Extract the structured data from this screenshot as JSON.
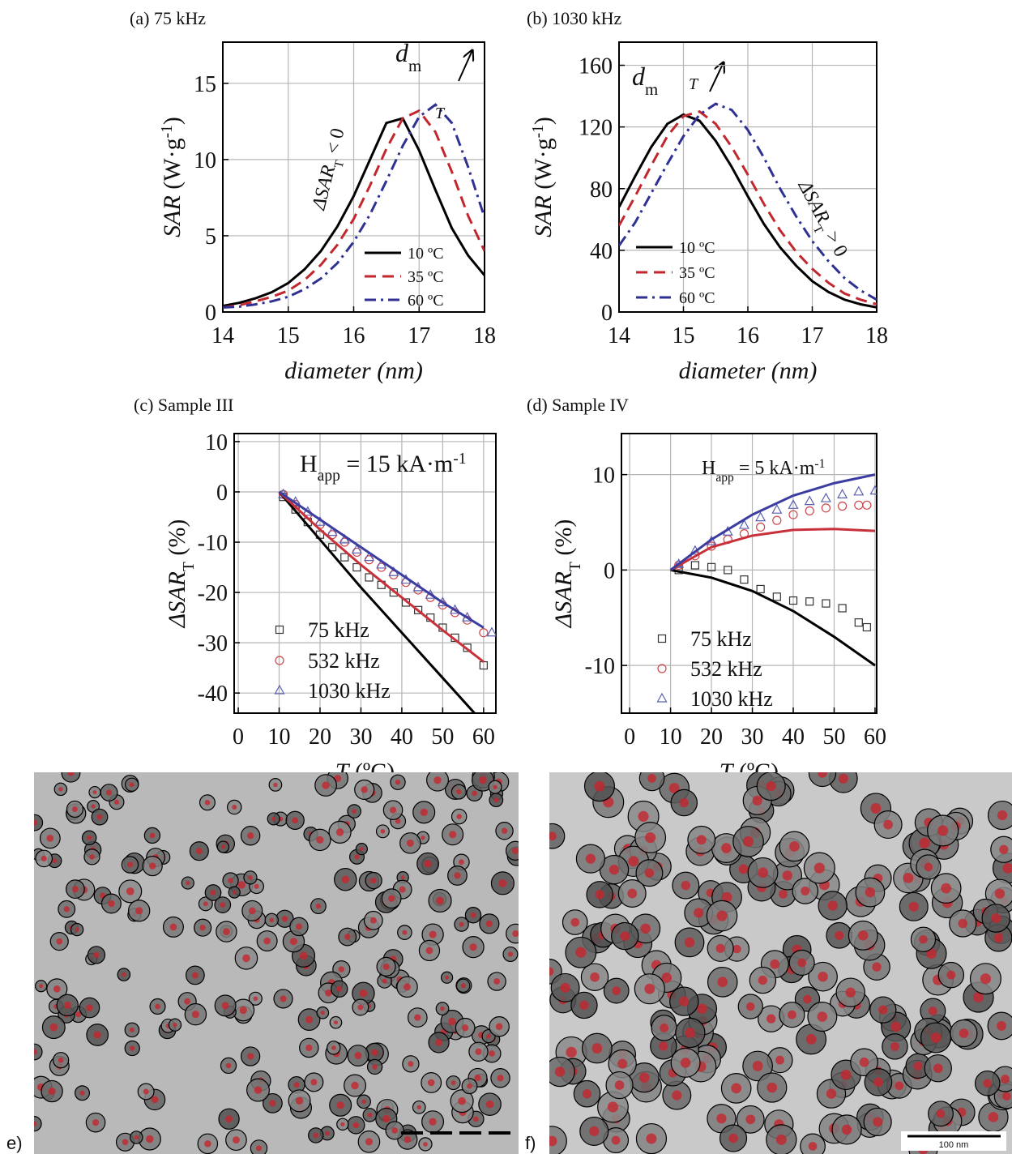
{
  "chart_data": [
    {
      "type": "line",
      "title": "(a) 75 kHz",
      "xlabel": [
        "diameter (nm)"
      ],
      "ylabel": [
        "SAR",
        " (W·g",
        "-1",
        ")"
      ],
      "x": [
        14,
        14.25,
        14.5,
        14.75,
        15,
        15.25,
        15.5,
        15.75,
        16,
        16.25,
        16.5,
        16.75,
        17,
        17.25,
        17.5,
        17.75,
        18
      ],
      "xlim": [
        14,
        18
      ],
      "xticks": [
        14,
        15,
        16,
        17,
        18
      ],
      "ylim": [
        0,
        17.7
      ],
      "yticks": [
        0,
        5,
        10,
        15
      ],
      "grid": true,
      "legend": "lower right",
      "series": [
        {
          "name": "10 ºC",
          "color": "#000000",
          "style": "solid",
          "values": [
            0.4,
            0.6,
            0.9,
            1.3,
            1.9,
            2.8,
            4.0,
            5.6,
            7.6,
            10.0,
            12.4,
            12.7,
            10.6,
            8.0,
            5.5,
            3.7,
            2.4
          ]
        },
        {
          "name": "35 ºC",
          "color": "#c1272d",
          "style": "dash",
          "values": [
            0.3,
            0.45,
            0.7,
            1.0,
            1.4,
            2.1,
            3.1,
            4.4,
            6.1,
            8.3,
            10.7,
            12.7,
            13.2,
            11.8,
            9.2,
            6.3,
            4.0
          ]
        },
        {
          "name": "60 ºC",
          "color": "#2e3192",
          "style": "dashdot",
          "values": [
            0.3,
            0.35,
            0.5,
            0.7,
            1.0,
            1.5,
            2.2,
            3.2,
            4.6,
            6.4,
            8.6,
            10.9,
            12.8,
            13.6,
            12.4,
            9.5,
            6.2
          ]
        }
      ],
      "annotations": [
        [
          "d",
          "m"
        ],
        [
          "T"
        ],
        [
          "ΔSAR",
          "T",
          " < 0"
        ]
      ]
    },
    {
      "type": "line",
      "title": "(b) 1030 kHz",
      "xlabel": [
        "diameter (nm)"
      ],
      "ylabel": [
        "SAR",
        " (W·g",
        "-1",
        ")"
      ],
      "x": [
        14,
        14.25,
        14.5,
        14.75,
        15,
        15.25,
        15.5,
        15.75,
        16,
        16.25,
        16.5,
        16.75,
        17,
        17.25,
        17.5,
        17.75,
        18
      ],
      "xlim": [
        14,
        18
      ],
      "xticks": [
        14,
        15,
        16,
        17,
        18
      ],
      "ylim": [
        0,
        175
      ],
      "yticks": [
        0,
        40,
        80,
        120,
        160
      ],
      "grid": true,
      "legend": "lower left",
      "series": [
        {
          "name": "10 ºC",
          "color": "#000000",
          "style": "solid",
          "values": [
            68,
            88,
            107,
            122,
            128,
            124,
            111,
            94,
            75,
            57,
            42,
            30,
            20,
            13,
            8,
            5,
            3
          ]
        },
        {
          "name": "35 ºC",
          "color": "#c1272d",
          "style": "dash",
          "values": [
            56,
            75,
            95,
            114,
            127,
            130,
            122,
            107,
            89,
            70,
            53,
            39,
            28,
            19,
            12,
            8,
            5
          ]
        },
        {
          "name": "60 ºC",
          "color": "#2e3192",
          "style": "dashdot",
          "values": [
            43,
            58,
            77,
            96,
            114,
            128,
            135,
            131,
            118,
            100,
            80,
            62,
            46,
            33,
            22,
            14,
            8
          ]
        }
      ],
      "annotations": [
        [
          "d",
          "m"
        ],
        [
          "T"
        ],
        [
          "ΔSAR",
          "T",
          " > 0"
        ]
      ]
    },
    {
      "type": "line",
      "title": "(c) Sample III",
      "xlabel": [
        "T",
        " (ºC)"
      ],
      "ylabel": [
        "ΔSAR",
        "T",
        " (%)"
      ],
      "xlim": [
        -1,
        63
      ],
      "xticks": [
        0,
        10,
        20,
        30,
        40,
        50,
        60
      ],
      "ylim": [
        -44,
        11.6
      ],
      "yticks": [
        -40,
        -30,
        -20,
        -10,
        0,
        10
      ],
      "grid": true,
      "legend": "lower left",
      "series": [
        {
          "name": "75 kHz",
          "color": "#333333",
          "marker": "square",
          "x": [
            11,
            14,
            17,
            20,
            23,
            26,
            29,
            32,
            35,
            38,
            41,
            44,
            47,
            50,
            53,
            56,
            60
          ],
          "values": [
            -1,
            -3.5,
            -6,
            -8.5,
            -11,
            -13,
            -15,
            -17,
            -18.5,
            -20,
            -22,
            -23.5,
            -25,
            -27,
            -29,
            -31,
            -34.5
          ]
        },
        {
          "name": "532 kHz",
          "color": "#d0454b",
          "marker": "circle",
          "x": [
            11,
            14,
            17,
            20,
            23,
            26,
            29,
            32,
            35,
            38,
            41,
            44,
            47,
            50,
            53,
            56,
            60
          ],
          "values": [
            -0.5,
            -2.5,
            -4.5,
            -6.5,
            -8.5,
            -10,
            -12,
            -13.5,
            -15,
            -16.5,
            -18,
            -19.5,
            -21,
            -22.5,
            -24,
            -25.5,
            -28
          ]
        },
        {
          "name": "1030 kHz",
          "color": "#5a5fb0",
          "marker": "triangle",
          "x": [
            11,
            14,
            17,
            20,
            23,
            26,
            29,
            32,
            35,
            38,
            41,
            44,
            47,
            50,
            53,
            56,
            62
          ],
          "values": [
            -0.5,
            -2,
            -4,
            -6,
            -8,
            -9.5,
            -11.5,
            -13,
            -14.5,
            -16,
            -17.5,
            -19,
            -20.5,
            -22,
            -23.5,
            -25,
            -28
          ]
        },
        {
          "color": "#000000",
          "style": "solid",
          "x": [
            10,
            20,
            30,
            40,
            50,
            60
          ],
          "values": [
            0,
            -9.5,
            -19,
            -28,
            -37,
            -46
          ]
        },
        {
          "color": "#c8313a",
          "style": "solid",
          "x": [
            10,
            20,
            30,
            40,
            50,
            60
          ],
          "values": [
            0,
            -7.5,
            -14.5,
            -21,
            -27.5,
            -33.8
          ]
        },
        {
          "color": "#3b3ea0",
          "style": "solid",
          "x": [
            10,
            20,
            30,
            40,
            50,
            60
          ],
          "values": [
            0,
            -5.5,
            -11,
            -16.5,
            -22,
            -27
          ]
        }
      ],
      "annotations": [
        [
          "H",
          "app",
          " = 15 kA·m",
          "-1"
        ]
      ]
    },
    {
      "type": "line",
      "title": "(d) Sample IV",
      "xlabel": [
        "T",
        " (ºC)"
      ],
      "ylabel": [
        "ΔSAR",
        "T",
        " (%)"
      ],
      "xlim": [
        -2,
        60.4
      ],
      "xticks": [
        0,
        10,
        20,
        30,
        40,
        50,
        60
      ],
      "ylim": [
        -15,
        14.3
      ],
      "yticks": [
        -10,
        0,
        10
      ],
      "grid": true,
      "legend": "lower left",
      "series": [
        {
          "name": "75 kHz",
          "color": "#333333",
          "marker": "square",
          "x": [
            12,
            16,
            20,
            24,
            28,
            32,
            36,
            40,
            44,
            48,
            52,
            56,
            58
          ],
          "values": [
            0,
            0.5,
            0.3,
            0,
            -1,
            -2,
            -2.8,
            -3.2,
            -3.3,
            -3.5,
            -4,
            -5.5,
            -6
          ]
        },
        {
          "name": "532 kHz",
          "color": "#d0454b",
          "marker": "circle",
          "x": [
            12,
            16,
            20,
            24,
            28,
            32,
            36,
            40,
            44,
            48,
            52,
            56,
            58
          ],
          "values": [
            0.5,
            1.5,
            2.5,
            3.2,
            3.8,
            4.5,
            5.2,
            5.8,
            6.2,
            6.5,
            6.7,
            6.8,
            6.8
          ]
        },
        {
          "name": "1030 kHz",
          "color": "#5a5fb0",
          "marker": "triangle",
          "x": [
            12,
            16,
            20,
            24,
            28,
            32,
            36,
            40,
            44,
            48,
            52,
            56,
            60
          ],
          "values": [
            0.6,
            2,
            3,
            4,
            4.7,
            5.5,
            6.3,
            6.8,
            7.2,
            7.5,
            7.9,
            8.2,
            8.3
          ]
        },
        {
          "color": "#000000",
          "style": "solid",
          "x": [
            10,
            20,
            30,
            40,
            50,
            60
          ],
          "values": [
            0,
            -0.8,
            -2.2,
            -4.3,
            -7,
            -10
          ]
        },
        {
          "color": "#c8313a",
          "style": "solid",
          "x": [
            10,
            20,
            30,
            40,
            50,
            60
          ],
          "values": [
            0,
            2.4,
            3.6,
            4.2,
            4.3,
            4.1
          ]
        },
        {
          "color": "#3b3ea0",
          "style": "solid",
          "x": [
            10,
            20,
            30,
            40,
            50,
            60
          ],
          "values": [
            0,
            3.2,
            5.8,
            7.8,
            9.1,
            10
          ]
        }
      ],
      "annotations": [
        [
          "H",
          "app",
          " = 5 kA·m",
          "-1"
        ]
      ]
    }
  ],
  "images": [
    {
      "label": "e)"
    },
    {
      "label": "f)",
      "scale_bar": "100 nm"
    }
  ]
}
